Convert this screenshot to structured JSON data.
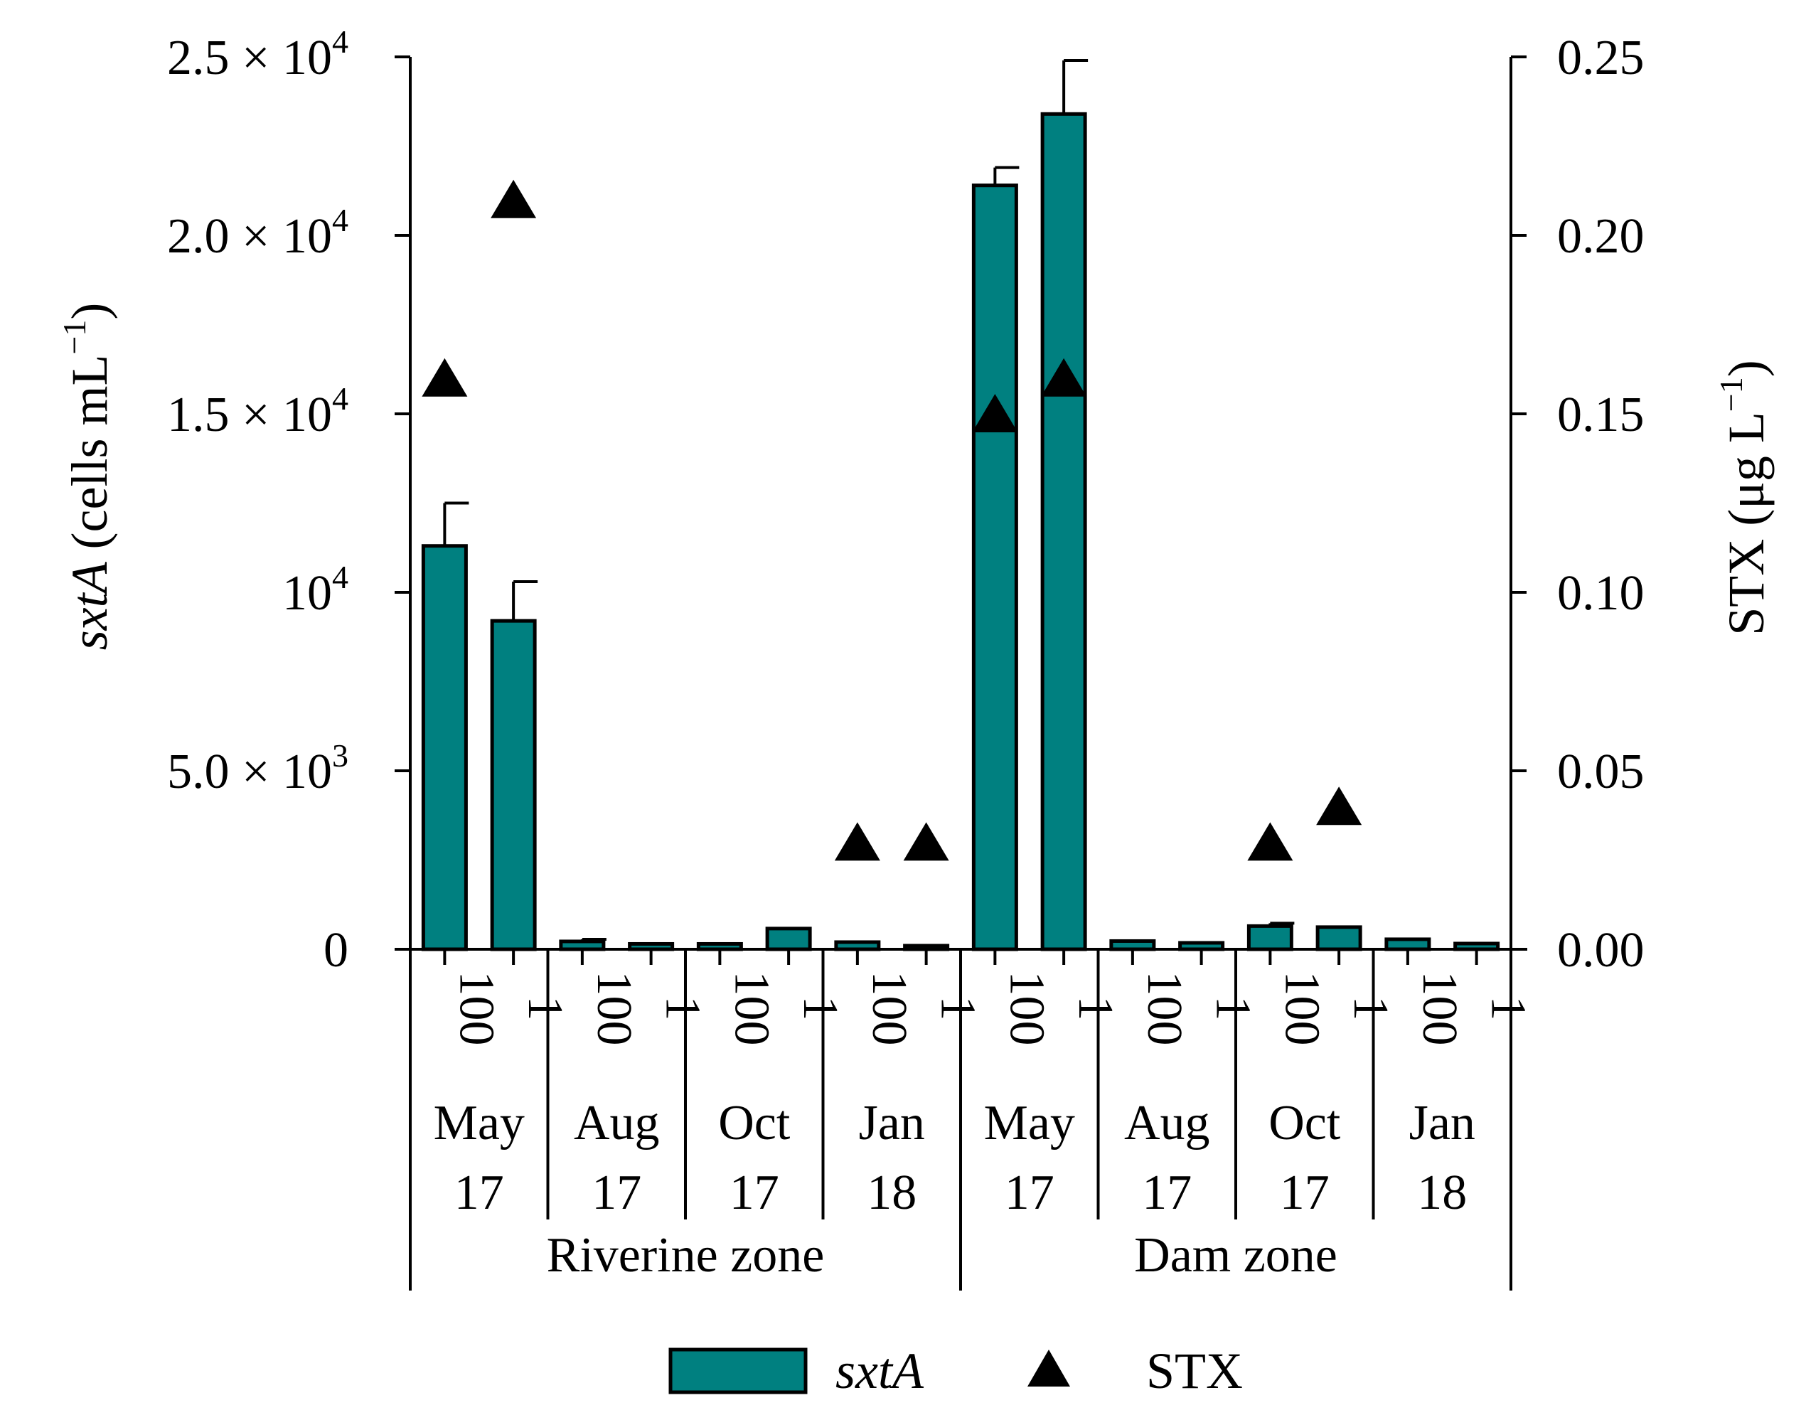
{
  "chart_data": {
    "type": "bar",
    "title": "",
    "bar_color": "#008080",
    "marker_color": "#000000",
    "left_axis": {
      "label_italic": "sxtA",
      "label_rest": "(cells mL",
      "label_sup": "−1",
      "label_close": ")",
      "ylim": [
        0,
        25000
      ],
      "ticks": [
        {
          "value": 0,
          "mant": "0",
          "exp": ""
        },
        {
          "value": 5000,
          "mant": "5.0 × 10",
          "exp": "3"
        },
        {
          "value": 10000,
          "mant": "10",
          "exp": "4"
        },
        {
          "value": 15000,
          "mant": "1.5 × 10",
          "exp": "4"
        },
        {
          "value": 20000,
          "mant": "2.0 × 10",
          "exp": "4"
        },
        {
          "value": 25000,
          "mant": "2.5 × 10",
          "exp": "4"
        }
      ]
    },
    "right_axis": {
      "label_main": "STX (μg L",
      "label_sup": "−1",
      "label_close": ")",
      "ylim": [
        0,
        0.25
      ],
      "ticks": [
        {
          "value": 0,
          "label": "0.00"
        },
        {
          "value": 0.05,
          "label": "0.05"
        },
        {
          "value": 0.1,
          "label": "0.10"
        },
        {
          "value": 0.15,
          "label": "0.15"
        },
        {
          "value": 0.2,
          "label": "0.20"
        },
        {
          "value": 0.25,
          "label": "0.25"
        }
      ]
    },
    "categories": [
      "100",
      "1",
      "100",
      "1",
      "100",
      "1",
      "100",
      "1",
      "100",
      "1",
      "100",
      "1",
      "100",
      "1",
      "100",
      "1"
    ],
    "months": [
      {
        "line1": "May",
        "line2": "17"
      },
      {
        "line1": "Aug",
        "line2": "17"
      },
      {
        "line1": "Oct",
        "line2": "17"
      },
      {
        "line1": "Jan",
        "line2": "18"
      },
      {
        "line1": "May",
        "line2": "17"
      },
      {
        "line1": "Aug",
        "line2": "17"
      },
      {
        "line1": "Oct",
        "line2": "17"
      },
      {
        "line1": "Jan",
        "line2": "18"
      }
    ],
    "zones": [
      "Riverine zone",
      "Dam zone"
    ],
    "series": [
      {
        "name": "sxtA",
        "axis": "left",
        "kind": "bar",
        "values": [
          11300,
          9200,
          220,
          150,
          150,
          580,
          200,
          100,
          21400,
          23400,
          230,
          180,
          650,
          620,
          280,
          160
        ],
        "errors": [
          1200,
          1100,
          60,
          0,
          0,
          0,
          0,
          0,
          500,
          1500,
          0,
          0,
          80,
          0,
          0,
          0
        ]
      },
      {
        "name": "STX",
        "axis": "right",
        "kind": "marker",
        "values": [
          0.16,
          0.21,
          null,
          null,
          null,
          null,
          0.03,
          0.03,
          0.15,
          0.16,
          null,
          null,
          0.03,
          0.04,
          null,
          null
        ]
      }
    ],
    "legend": {
      "bar_label": "sxtA",
      "marker_label": "STX"
    }
  }
}
